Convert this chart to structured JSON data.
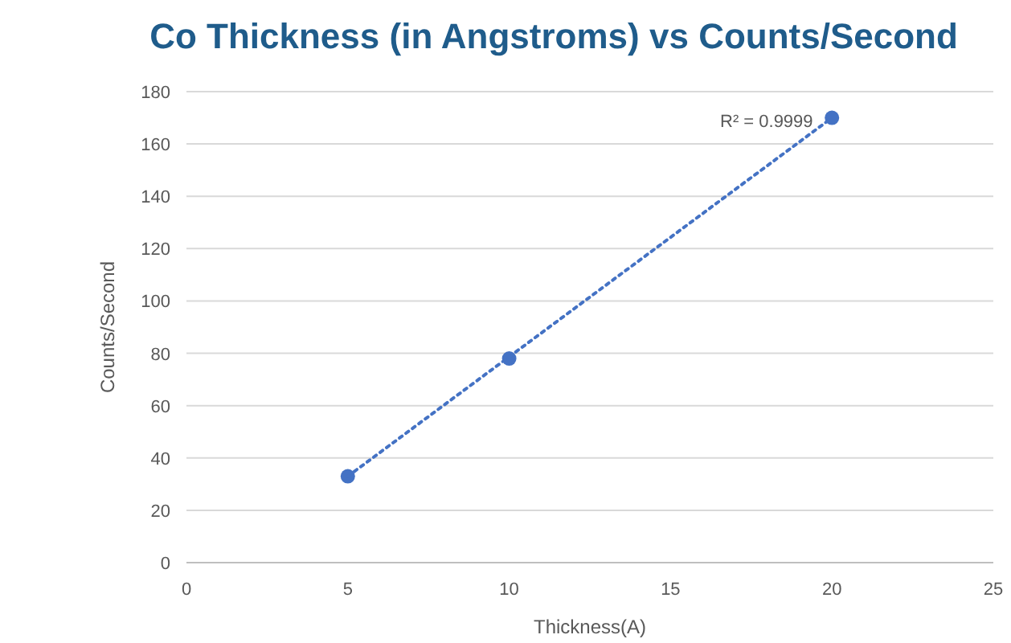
{
  "chart_data": {
    "type": "scatter",
    "title": "Co Thickness (in Angstroms) vs Counts/Second",
    "xlabel": "Thickness(A)",
    "ylabel": "Counts/Second",
    "x": [
      5,
      10,
      20
    ],
    "series": [
      {
        "color": "#4472c4",
        "values": [
          33,
          78,
          170
        ],
        "marker": "circle"
      },
      {
        "type": "line",
        "color": "#4472c4",
        "x": [
          5,
          20
        ],
        "values": [
          33,
          170
        ],
        "marker": "none",
        "line_style": "dotted"
      }
    ],
    "annotations": [
      "R² = 0.9999"
    ],
    "xlim": [
      0,
      25
    ],
    "xticks": [
      0,
      5,
      10,
      15,
      20,
      25
    ],
    "ylim": [
      0,
      180
    ],
    "yticks": [
      0,
      20,
      40,
      60,
      80,
      100,
      120,
      140,
      160,
      180
    ],
    "grid": "y"
  }
}
